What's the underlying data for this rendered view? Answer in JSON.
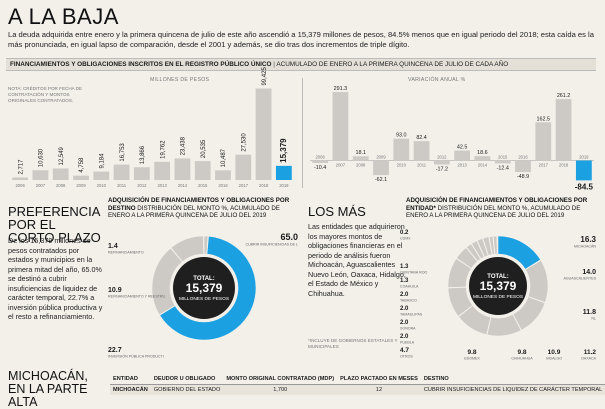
{
  "headline": "A LA BAJA",
  "intro": "La deuda adquirida entre enero y la primera quincena de julio de este año ascendió a 15,379 millones de pesos, 84.5% menos que en igual periodo del 2018; esta caída es la más pronunciada, en igual lapso de comparación, desde el 2001 y además, se dio tras dos incrementos de triple dígito.",
  "banner": {
    "title": "FINANCIAMIENTOS Y OBLIGACIONES INSCRITOS EN EL REGISTRO PÚBLICO ÚNICO",
    "subtitle": "ACUMULADO DE ENERO A LA PRIMERA QUINCENA DE JULIO DE CADA AÑO"
  },
  "note_left": "NOTA: CRÉDITOS POR FECHA DE CONTRATACIÓN Y MONTOS ORIGINALES CONTRATADOS.",
  "chart_data": [
    {
      "type": "bar",
      "title": "MILLONES DE PESOS",
      "categories": [
        "2006",
        "2007",
        "2008",
        "2009",
        "2010",
        "2011",
        "2012",
        "2013",
        "2014",
        "2015",
        "2016",
        "2017",
        "2018",
        "2019"
      ],
      "values": [
        2717,
        10630,
        12549,
        4758,
        9184,
        16753,
        13866,
        19762,
        23438,
        20535,
        10487,
        27530,
        99425,
        15379
      ],
      "value_labels": [
        "2,717",
        "10,630",
        "12,549",
        "4,758",
        "9,184",
        "16,753",
        "13,866",
        "19,762",
        "23,438",
        "20,535",
        "10,487",
        "27,530",
        "99,425",
        "15,379"
      ],
      "ylim": [
        0,
        100000
      ],
      "highlight": "2019"
    },
    {
      "type": "bar",
      "title": "VARIACIÓN ANUAL %",
      "categories": [
        "2006",
        "2007",
        "2008",
        "2009",
        "2010",
        "2011",
        "2012",
        "2013",
        "2014",
        "2015",
        "2016",
        "2017",
        "2018",
        "2019"
      ],
      "values": [
        -10.4,
        291.3,
        18.1,
        -62.1,
        93.0,
        82.4,
        -17.2,
        42.5,
        18.6,
        -12.4,
        -48.9,
        162.5,
        261.2,
        -84.5
      ],
      "value_labels": [
        "-10.4",
        "291.3",
        "18.1",
        "-62.1",
        "93.0",
        "82.4",
        "-17.2",
        "42.5",
        "18.6",
        "-12.4",
        "-48.9",
        "162.5",
        "261.2",
        "-84.5"
      ],
      "ylim": [
        -100,
        300
      ],
      "highlight": "2019"
    },
    {
      "type": "pie",
      "title": "ADQUISICIÓN DE FINANCIAMIENTOS Y OBLIGACIONES POR DESTINO",
      "subtitle": "DISTRIBUCIÓN DEL MONTO %, ACUMULADO DE ENERO A LA PRIMERA QUINCENA DE JULIO DEL 2019",
      "center_label": "TOTAL:",
      "center_value": "15,379",
      "center_unit": "MILLONES DE PESOS",
      "slices": [
        {
          "label": "REFINANCIAMIENTO",
          "value": 1.4,
          "value_label": "1.4"
        },
        {
          "label": "CUBRIR INSUFICIENCIAS DE LIQUIDEZ DE CARÁCTER TEMPORAL",
          "value": 65.0,
          "value_label": "65.0"
        },
        {
          "label": "INVERSIÓN PÚBLICA PRODUCTIVA",
          "value": 22.7,
          "value_label": "22.7"
        },
        {
          "label": "REFINANCIAMIENTO Y REESTRUCTURACIÓN",
          "value": 10.9,
          "value_label": "10.9"
        }
      ]
    },
    {
      "type": "pie",
      "title": "ADQUISICIÓN DE FINANCIAMIENTOS Y OBLIGACIONES POR ENTIDAD*",
      "subtitle": "DISTRIBUCIÓN DEL MONTO %, ACUMULADO DE ENERO A LA PRIMERA QUINCENA DE JULIO DEL 2019",
      "center_label": "TOTAL:",
      "center_value": "15,379",
      "center_unit": "MILLONES DE PESOS",
      "slices": [
        {
          "label": "MICHOACÁN",
          "value": 16.3,
          "value_label": "16.3"
        },
        {
          "label": "AGUASCALIENTES",
          "value": 14.0,
          "value_label": "14.0"
        },
        {
          "label": "NL",
          "value": 11.8,
          "value_label": "11.8"
        },
        {
          "label": "OAXACA",
          "value": 11.2,
          "value_label": "11.2"
        },
        {
          "label": "HIDALGO",
          "value": 10.9,
          "value_label": "10.9"
        },
        {
          "label": "CHIHUAHUA",
          "value": 9.8,
          "value_label": "9.8"
        },
        {
          "label": "EDOMEX",
          "value": 9.8,
          "value_label": "9.8"
        },
        {
          "label": "OTROS",
          "value": 4.7,
          "value_label": "4.7"
        },
        {
          "label": "PUEBLA",
          "value": 2.0,
          "value_label": "2.0"
        },
        {
          "label": "SONORA",
          "value": 2.0,
          "value_label": "2.0"
        },
        {
          "label": "TAMAULIPAS",
          "value": 2.0,
          "value_label": "2.0"
        },
        {
          "label": "TABASCO",
          "value": 2.0,
          "value_label": "2.0"
        },
        {
          "label": "COAHUILA",
          "value": 1.3,
          "value_label": "1.3"
        },
        {
          "label": "QUINTANA ROO",
          "value": 1.3,
          "value_label": "1.3"
        },
        {
          "label": "CDMX",
          "value": 0.2,
          "value_label": "0.2"
        }
      ]
    }
  ],
  "preferencia": {
    "title": "PREFERENCIA POR EL CORTO PLAZO",
    "body": "De los 15,379 millones de pesos contratados por estados y municipios en la primera mitad del año, 65.0% se destinó a cubrir insuficiencias de liquidez de carácter temporal, 22.7% a inversión pública productiva y el resto a refinanciamiento."
  },
  "losmas": {
    "title": "LOS MÁS",
    "body": "Las entidades que adquirieron los mayores montos de obligaciones financieras en el periodo de análisis fueron Michoacán, Aguascalientes Nuevo León, Oaxaca, Hidalgo, el Estado de México y Chihuahua.",
    "footnote": "*INCLUYE DE GOBIERNOS ESTATALES Y MUNICIPALES"
  },
  "michoacan": {
    "title": "MICHOACÁN, EN LA PARTE ALTA"
  },
  "table": {
    "headers": [
      "ENTIDAD",
      "DEUDOR U OBLIGADO",
      "MONTO ORIGINAL CONTRATADO (MDP)",
      "PLAZO PACTADO EN MESES",
      "DESTINO"
    ],
    "rows": [
      [
        "MICHOACÁN",
        "GOBIERNO DEL ESTADO",
        "1,700",
        "12",
        "CUBRIR INSUFICIENCIAS DE LIQUIDEZ DE CARÁCTER TEMPORAL"
      ]
    ]
  },
  "colors": {
    "gray": "#cdcac6",
    "highlight": "#1ba1e2",
    "ink": "#1b1b1b"
  }
}
